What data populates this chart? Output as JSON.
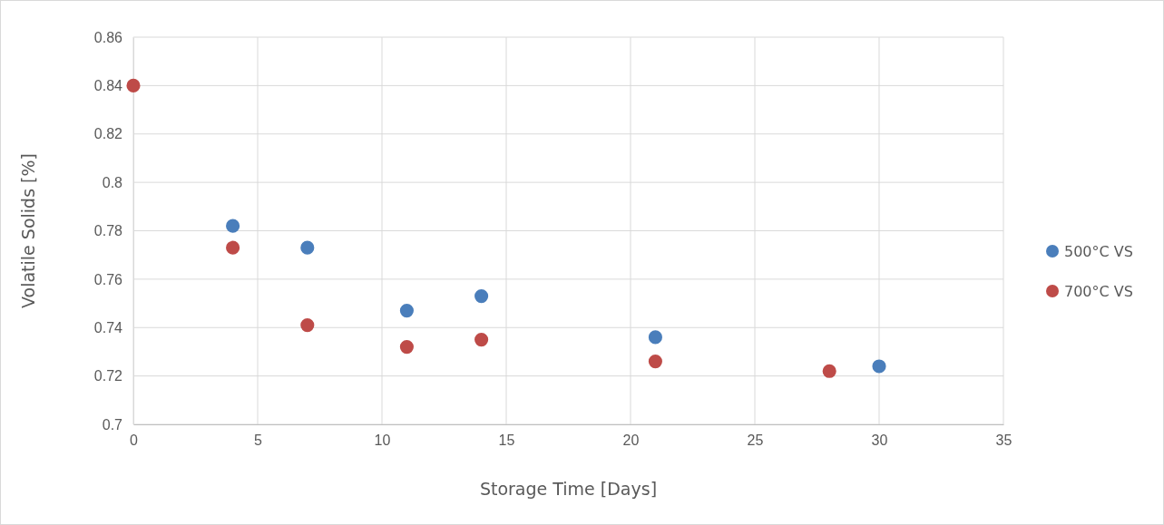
{
  "chart_data": {
    "type": "scatter",
    "xlabel": "Storage Time [Days]",
    "ylabel": "Volatile Solids [%]",
    "xlim": [
      0,
      35
    ],
    "xticks": [
      0,
      5,
      10,
      15,
      20,
      25,
      30,
      35
    ],
    "ylim": [
      0.7,
      0.86
    ],
    "yticks": [
      0.7,
      0.72,
      0.74,
      0.76,
      0.78,
      0.8,
      0.82,
      0.84,
      0.86
    ],
    "grid": true,
    "legend": "right",
    "marker": "circle",
    "series": [
      {
        "name": "500°C VS",
        "color": "#4a7ebb",
        "x": [
          4,
          7,
          11,
          14,
          21,
          30
        ],
        "values": [
          0.782,
          0.773,
          0.747,
          0.753,
          0.736,
          0.724
        ]
      },
      {
        "name": "700°C VS",
        "color": "#be4b48",
        "x": [
          0,
          4,
          7,
          11,
          14,
          21,
          28
        ],
        "values": [
          0.84,
          0.773,
          0.741,
          0.732,
          0.735,
          0.726,
          0.722
        ]
      }
    ]
  }
}
